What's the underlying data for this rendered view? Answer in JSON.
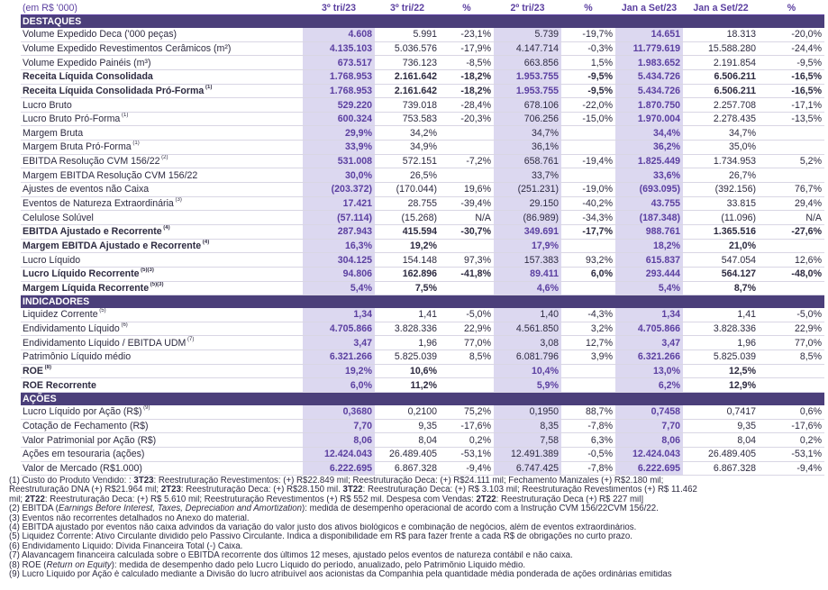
{
  "header": {
    "unit": "(em R$ '000)",
    "columns": [
      "3º tri/23",
      "3º tri/22",
      "%",
      "2º tri/23",
      "%",
      "Jan a Set/23",
      "Jan a Set/22",
      "%"
    ]
  },
  "sections": [
    {
      "title": "DESTAQUES",
      "rows": [
        {
          "label": "Volume Expedido Deca ('000 peças)",
          "sup": "",
          "bold": false,
          "values": [
            "4.608",
            "5.991",
            "-23,1%",
            "5.739",
            "-19,7%",
            "14.651",
            "18.313",
            "-20,0%"
          ]
        },
        {
          "label": "Volume Expedido Revestimentos Cerâmicos (m²)",
          "sup": "",
          "bold": false,
          "values": [
            "4.135.103",
            "5.036.576",
            "-17,9%",
            "4.147.714",
            "-0,3%",
            "11.779.619",
            "15.588.280",
            "-24,4%"
          ]
        },
        {
          "label": "Volume Expedido Painéis (m³)",
          "sup": "",
          "bold": false,
          "values": [
            "673.517",
            "736.123",
            "-8,5%",
            "663.856",
            "1,5%",
            "1.983.652",
            "2.191.854",
            "-9,5%"
          ]
        },
        {
          "label": "Receita Líquida Consolidada",
          "sup": "",
          "bold": true,
          "values": [
            "1.768.953",
            "2.161.642",
            "-18,2%",
            "1.953.755",
            "-9,5%",
            "5.434.726",
            "6.506.211",
            "-16,5%"
          ]
        },
        {
          "label": "Receita Líquida Consolidada Pró-Forma",
          "sup": "(1)",
          "bold": true,
          "values": [
            "1.768.953",
            "2.161.642",
            "-18,2%",
            "1.953.755",
            "-9,5%",
            "5.434.726",
            "6.506.211",
            "-16,5%"
          ]
        },
        {
          "label": "Lucro Bruto",
          "sup": "",
          "bold": false,
          "values": [
            "529.220",
            "739.018",
            "-28,4%",
            "678.106",
            "-22,0%",
            "1.870.750",
            "2.257.708",
            "-17,1%"
          ]
        },
        {
          "label": "Lucro Bruto Pró-Forma",
          "sup": "(1)",
          "bold": false,
          "values": [
            "600.324",
            "753.583",
            "-20,3%",
            "706.256",
            "-15,0%",
            "1.970.004",
            "2.278.435",
            "-13,5%"
          ]
        },
        {
          "label": "Margem Bruta",
          "sup": "",
          "bold": false,
          "values": [
            "29,9%",
            "34,2%",
            "",
            "34,7%",
            "",
            "34,4%",
            "34,7%",
            ""
          ]
        },
        {
          "label": "Margem Bruta Pró-Forma",
          "sup": "(1)",
          "bold": false,
          "values": [
            "33,9%",
            "34,9%",
            "",
            "36,1%",
            "",
            "36,2%",
            "35,0%",
            ""
          ]
        },
        {
          "label": "EBITDA Resolução CVM 156/22",
          "sup": "(2)",
          "bold": false,
          "values": [
            "531.008",
            "572.151",
            "-7,2%",
            "658.761",
            "-19,4%",
            "1.825.449",
            "1.734.953",
            "5,2%"
          ]
        },
        {
          "label": "Margem EBITDA Resolução CVM 156/22",
          "sup": "",
          "bold": false,
          "values": [
            "30,0%",
            "26,5%",
            "",
            "33,7%",
            "",
            "33,6%",
            "26,7%",
            ""
          ]
        },
        {
          "label": "Ajustes de eventos não Caixa",
          "sup": "",
          "bold": false,
          "values": [
            "(203.372)",
            "(170.044)",
            "19,6%",
            "(251.231)",
            "-19,0%",
            "(693.095)",
            "(392.156)",
            "76,7%"
          ]
        },
        {
          "label": "Eventos de Natureza Extraordinária",
          "sup": "(3)",
          "bold": false,
          "values": [
            "17.421",
            "28.755",
            "-39,4%",
            "29.150",
            "-40,2%",
            "43.755",
            "33.815",
            "29,4%"
          ]
        },
        {
          "label": "Celulose Solúvel",
          "sup": "",
          "bold": false,
          "values": [
            "(57.114)",
            "(15.268)",
            "N/A",
            "(86.989)",
            "-34,3%",
            "(187.348)",
            "(11.096)",
            "N/A"
          ]
        },
        {
          "label": "EBITDA Ajustado e Recorrente",
          "sup": "(4)",
          "bold": true,
          "values": [
            "287.943",
            "415.594",
            "-30,7%",
            "349.691",
            "-17,7%",
            "988.761",
            "1.365.516",
            "-27,6%"
          ]
        },
        {
          "label": "Margem EBITDA Ajustado e Recorrente",
          "sup": "(4)",
          "bold": true,
          "values": [
            "16,3%",
            "19,2%",
            "",
            "17,9%",
            "",
            "18,2%",
            "21,0%",
            ""
          ]
        },
        {
          "label": "Lucro Líquido",
          "sup": "",
          "bold": false,
          "values": [
            "304.125",
            "154.148",
            "97,3%",
            "157.383",
            "93,2%",
            "615.837",
            "547.054",
            "12,6%"
          ]
        },
        {
          "label": "Lucro Líquido Recorrente",
          "sup": "(5)(3)",
          "bold": true,
          "values": [
            "94.806",
            "162.896",
            "-41,8%",
            "89.411",
            "6,0%",
            "293.444",
            "564.127",
            "-48,0%"
          ]
        },
        {
          "label": "Margem Líquida Recorrente",
          "sup": "(5)(3)",
          "bold": true,
          "values": [
            "5,4%",
            "7,5%",
            "",
            "4,6%",
            "",
            "5,4%",
            "8,7%",
            ""
          ]
        }
      ]
    },
    {
      "title": "INDICADORES",
      "rows": [
        {
          "label": "Liquidez Corrente",
          "sup": "(5)",
          "bold": false,
          "values": [
            "1,34",
            "1,41",
            "-5,0%",
            "1,40",
            "-4,3%",
            "1,34",
            "1,41",
            "-5,0%"
          ]
        },
        {
          "label": "Endividamento Líquido",
          "sup": "(6)",
          "bold": false,
          "values": [
            "4.705.866",
            "3.828.336",
            "22,9%",
            "4.561.850",
            "3,2%",
            "4.705.866",
            "3.828.336",
            "22,9%"
          ]
        },
        {
          "label": "Endividamento Líquido / EBITDA UDM",
          "sup": "(7)",
          "bold": false,
          "values": [
            "3,47",
            "1,96",
            "77,0%",
            "3,08",
            "12,7%",
            "3,47",
            "1,96",
            "77,0%"
          ]
        },
        {
          "label": "Patrimônio Líquido médio",
          "sup": "",
          "bold": false,
          "values": [
            "6.321.266",
            "5.825.039",
            "8,5%",
            "6.081.796",
            "3,9%",
            "6.321.266",
            "5.825.039",
            "8,5%"
          ]
        },
        {
          "label": "ROE",
          "sup": "(8)",
          "bold": true,
          "values": [
            "19,2%",
            "10,6%",
            "",
            "10,4%",
            "",
            "13,0%",
            "12,5%",
            ""
          ]
        },
        {
          "label": "ROE Recorrente",
          "sup": "",
          "bold": true,
          "values": [
            "6,0%",
            "11,2%",
            "",
            "5,9%",
            "",
            "6,2%",
            "12,9%",
            ""
          ]
        }
      ]
    },
    {
      "title": "AÇÕES",
      "rows": [
        {
          "label": "Lucro Líquido por Ação (R$)",
          "sup": "(9)",
          "bold": false,
          "values": [
            "0,3680",
            "0,2100",
            "75,2%",
            "0,1950",
            "88,7%",
            "0,7458",
            "0,7417",
            "0,6%"
          ]
        },
        {
          "label": "Cotação de Fechamento (R$)",
          "sup": "",
          "bold": false,
          "values": [
            "7,70",
            "9,35",
            "-17,6%",
            "8,35",
            "-7,8%",
            "7,70",
            "9,35",
            "-17,6%"
          ]
        },
        {
          "label": "Valor Patrimonial por Ação (R$)",
          "sup": "",
          "bold": false,
          "values": [
            "8,06",
            "8,04",
            "0,2%",
            "7,58",
            "6,3%",
            "8,06",
            "8,04",
            "0,2%"
          ]
        },
        {
          "label": "Ações em tesouraria (ações)",
          "sup": "",
          "bold": false,
          "values": [
            "12.424.043",
            "26.489.405",
            "-53,1%",
            "12.491.389",
            "-0,5%",
            "12.424.043",
            "26.489.405",
            "-53,1%"
          ]
        },
        {
          "label": "Valor de Mercado (R$1.000)",
          "sup": "",
          "bold": false,
          "values": [
            "6.222.695",
            "6.867.328",
            "-9,4%",
            "6.747.425",
            "-7,8%",
            "6.222.695",
            "6.867.328",
            "-9,4%"
          ]
        }
      ]
    }
  ],
  "footnotes": [
    "(1) Custo do Produto Vendido: : <b>3T23</b>: Reestruturação Revestimentos: (+) R$22.849 mil; Reestruturação Deca: (+) R$24.111 mil; Fechamento Manizales (+) R$2.180 mil;",
    "Reestruturação DNA (+) R$21.964 mil; <b>2T23</b>: Reestruturação Deca: (+) R$28.150 mil. <b>3T22</b>: Reestruturação Deca: (+) R$ 3.103 mil; Reestruturação Revestimentos (+) R$ 11.462",
    "mil; <b>2T22</b>: Reestruturação Deca: (+) R$ 5.610 mil; Reestruturação Revestimentos (+) R$ 552 mil. Despesa com Vendas: <b>2T22</b>: Reestruturação Deca (+) R$ 227 mil]",
    "(2) EBITDA (<i>Earnings Before Interest, Taxes, Depreciation and Amortization</i>): medida de desempenho operacional de acordo com a Instrução CVM 156/22CVM 156/22.",
    "(3) Eventos não recorrentes detalhados no Anexo do material.",
    "(4) EBITDA ajustado por eventos não caixa advindos da variação do valor justo dos ativos biológicos e combinação de negócios, além de eventos extraordinários.",
    "(5) Liquidez Corrente: Ativo Circulante dividido pelo Passivo Circulante. Indica a disponibilidade em R$ para fazer frente a cada R$ de obrigações no curto prazo.",
    "(6) Endividamento Líquido: Dívida Financeira Total (-) Caixa.",
    "(7) Alavancagem financeira calculada sobre o EBITDA recorrente dos últimos 12 meses, ajustado pelos eventos de natureza contábil e não caixa.",
    "(8) ROE (<i>Return on Equity</i>): medida de desempenho dado pelo Lucro Líquido do período, anualizado, pelo Patrimônio Líquido médio.",
    "(9) Lucro Líquido por Ação é calculado mediante a Divisão do lucro atribuível aos acionistas da Companhia pela quantidade média ponderada de ações ordinárias emitidas"
  ]
}
